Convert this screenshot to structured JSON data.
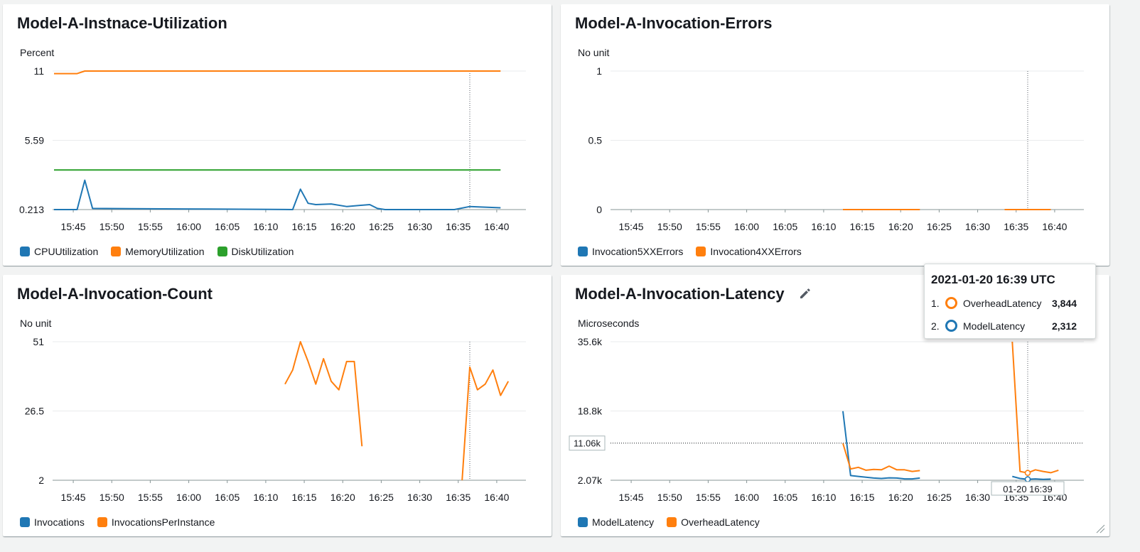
{
  "colors": {
    "blue": "#1f77b4",
    "orange": "#ff7f0e",
    "green": "#2ca02c",
    "grid": "#e9ebed",
    "axis": "#879596"
  },
  "chart_data": [
    {
      "id": "util",
      "type": "line",
      "title": "Model-A-Instnace-Utilization",
      "unit_label": "Percent",
      "y_ticks": [
        "11",
        "5.59",
        "0.213"
      ],
      "ylim": [
        0.213,
        11
      ],
      "x_range": [
        0,
        60
      ],
      "x_ticks": [
        "15:45",
        "15:50",
        "15:55",
        "16:00",
        "16:05",
        "16:10",
        "16:15",
        "16:20",
        "16:25",
        "16:30",
        "16:35",
        "16:40"
      ],
      "crosshair_x": 54,
      "series": [
        {
          "name": "CPUUtilization",
          "color": "#1f77b4",
          "points": [
            [
              0,
              0.213
            ],
            [
              3,
              0.213
            ],
            [
              4,
              2.5
            ],
            [
              5,
              0.3
            ],
            [
              10,
              0.28
            ],
            [
              20,
              0.25
            ],
            [
              30,
              0.22
            ],
            [
              31,
              0.213
            ],
            [
              32,
              1.8
            ],
            [
              33,
              0.7
            ],
            [
              34,
              0.6
            ],
            [
              36,
              0.65
            ],
            [
              38,
              0.45
            ],
            [
              41,
              0.6
            ],
            [
              42,
              0.3
            ],
            [
              43,
              0.213
            ],
            [
              52,
              0.213
            ],
            [
              54,
              0.45
            ],
            [
              58,
              0.35
            ]
          ]
        },
        {
          "name": "MemoryUtilization",
          "color": "#ff7f0e",
          "points": [
            [
              0,
              10.8
            ],
            [
              3,
              10.8
            ],
            [
              4,
              11
            ],
            [
              58,
              11
            ]
          ]
        },
        {
          "name": "DiskUtilization",
          "color": "#2ca02c",
          "points": [
            [
              0,
              3.3
            ],
            [
              58,
              3.3
            ]
          ]
        }
      ]
    },
    {
      "id": "errors",
      "type": "line",
      "title": "Model-A-Invocation-Errors",
      "unit_label": "No unit",
      "y_ticks": [
        "1",
        "0.5",
        "0"
      ],
      "ylim": [
        0,
        1
      ],
      "x_range": [
        0,
        60
      ],
      "x_ticks": [
        "15:45",
        "15:50",
        "15:55",
        "16:00",
        "16:05",
        "16:10",
        "16:15",
        "16:20",
        "16:25",
        "16:30",
        "16:35",
        "16:40"
      ],
      "crosshair_x": 54,
      "series": [
        {
          "name": "Invocation5XXErrors",
          "color": "#1f77b4",
          "points": []
        },
        {
          "name": "Invocation4XXErrors",
          "color": "#ff7f0e",
          "segments": [
            [
              [
                30,
                0
              ],
              [
                40,
                0
              ]
            ],
            [
              [
                51,
                0
              ],
              [
                57,
                0
              ]
            ]
          ]
        }
      ]
    },
    {
      "id": "count",
      "type": "line",
      "title": "Model-A-Invocation-Count",
      "unit_label": "No unit",
      "y_ticks": [
        "51",
        "26.5",
        "2"
      ],
      "ylim": [
        2,
        51
      ],
      "x_range": [
        0,
        60
      ],
      "x_ticks": [
        "15:45",
        "15:50",
        "15:55",
        "16:00",
        "16:05",
        "16:10",
        "16:15",
        "16:20",
        "16:25",
        "16:30",
        "16:35",
        "16:40"
      ],
      "crosshair_x": 54,
      "series": [
        {
          "name": "Invocations",
          "color": "#1f77b4",
          "points": []
        },
        {
          "name": "InvocationsPerInstance",
          "color": "#ff7f0e",
          "segments": [
            [
              [
                30,
                36
              ],
              [
                31,
                41
              ],
              [
                32,
                51
              ],
              [
                33,
                44
              ],
              [
                34,
                36
              ],
              [
                35,
                45
              ],
              [
                36,
                37
              ],
              [
                37,
                34
              ],
              [
                38,
                44
              ],
              [
                39,
                44
              ],
              [
                40,
                14
              ]
            ],
            [
              [
                53,
                2
              ],
              [
                54,
                42
              ],
              [
                55,
                34
              ],
              [
                56,
                36
              ],
              [
                57,
                41
              ],
              [
                58,
                32
              ],
              [
                59,
                37
              ]
            ]
          ]
        }
      ]
    },
    {
      "id": "latency",
      "type": "line",
      "title": "Model-A-Invocation-Latency",
      "unit_label": "Microseconds",
      "y_ticks": [
        "35.6k",
        "18.8k",
        "2.07k"
      ],
      "ylim": [
        2070,
        35600
      ],
      "x_range": [
        0,
        60
      ],
      "x_ticks": [
        "15:45",
        "15:50",
        "15:55",
        "16:00",
        "16:05",
        "16:10",
        "16:15",
        "16:20",
        "16:25",
        "16:30",
        "16:35",
        "16:40"
      ],
      "crosshair_x": 54,
      "hover_value_label": "11.06k",
      "hover_value": 11060,
      "hover_time_label": "01-20 16:39",
      "series": [
        {
          "name": "ModelLatency",
          "color": "#1f77b4",
          "segments": [
            [
              [
                30,
                18800
              ],
              [
                31,
                3200
              ],
              [
                32,
                3000
              ],
              [
                33,
                2800
              ],
              [
                34,
                2600
              ],
              [
                35,
                2500
              ],
              [
                36,
                2650
              ],
              [
                37,
                2600
              ],
              [
                38,
                2400
              ],
              [
                39,
                2400
              ],
              [
                40,
                2600
              ]
            ],
            [
              [
                52,
                3000
              ],
              [
                53,
                2500
              ],
              [
                54,
                2312
              ],
              [
                55,
                2400
              ],
              [
                56,
                2300
              ],
              [
                57,
                2350
              ]
            ]
          ]
        },
        {
          "name": "OverheadLatency",
          "color": "#ff7f0e",
          "segments": [
            [
              [
                30,
                11000
              ],
              [
                31,
                4800
              ],
              [
                32,
                5200
              ],
              [
                33,
                4500
              ],
              [
                34,
                4700
              ],
              [
                35,
                4600
              ],
              [
                36,
                5500
              ],
              [
                37,
                4600
              ],
              [
                38,
                4600
              ],
              [
                39,
                4200
              ],
              [
                40,
                4400
              ]
            ],
            [
              [
                52,
                35600
              ],
              [
                53,
                4200
              ],
              [
                54,
                3844
              ],
              [
                55,
                4600
              ],
              [
                56,
                4200
              ],
              [
                57,
                3900
              ],
              [
                58,
                4500
              ]
            ]
          ]
        }
      ]
    }
  ],
  "tooltip": {
    "title": "2021-01-20 16:39 UTC",
    "rows": [
      {
        "index": "1.",
        "name": "OverheadLatency",
        "value": "3,844",
        "color": "#ff7f0e"
      },
      {
        "index": "2.",
        "name": "ModelLatency",
        "value": "2,312",
        "color": "#1f77b4"
      }
    ]
  },
  "icons": {
    "edit": "pencil-icon",
    "resize": "resize-handle-icon"
  }
}
